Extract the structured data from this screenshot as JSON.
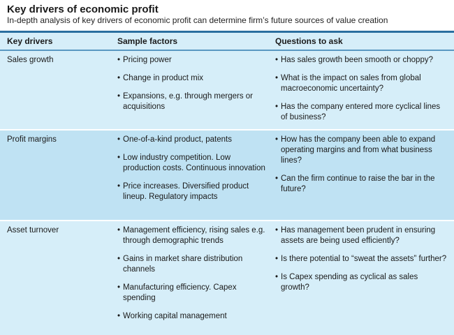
{
  "header": {
    "title": "Key drivers of economic profit",
    "subtitle": "In-depth analysis of key drivers of economic profit can determine firm’s future sources of value creation"
  },
  "columns": [
    "Key drivers",
    "Sample factors",
    "Questions to ask"
  ],
  "rows": [
    {
      "driver": "Sales growth",
      "factors": [
        "Pricing power",
        "Change in product mix",
        "Expansions, e.g. through mergers or acquisitions"
      ],
      "questions": [
        "Has sales growth been smooth or choppy?",
        "What is the impact on sales from global macroeconomic uncertainty?",
        "Has the company entered more cyclical lines of business?"
      ]
    },
    {
      "driver": "Profit margins",
      "factors": [
        "One-of-a-kind product, patents",
        "Low industry competition. Low production costs. Continuous innovation",
        "Price increases. Diversified product lineup. Regulatory impacts"
      ],
      "questions": [
        "How has the company been able to expand operating margins and from what business lines?",
        "Can the firm continue to raise the bar in the future?"
      ]
    },
    {
      "driver": "Asset turnover",
      "factors": [
        "Management efficiency, rising sales e.g. through demographic trends",
        "Gains in market share distribution channels",
        "Manufacturing efficiency. Capex spending",
        "Working capital management"
      ],
      "questions": [
        "Has management been prudent in ensuring assets are being used efficiently?",
        "Is there potential to “sweat the assets” further?",
        "Is Capex spending as cyclical as sales growth?"
      ]
    }
  ]
}
